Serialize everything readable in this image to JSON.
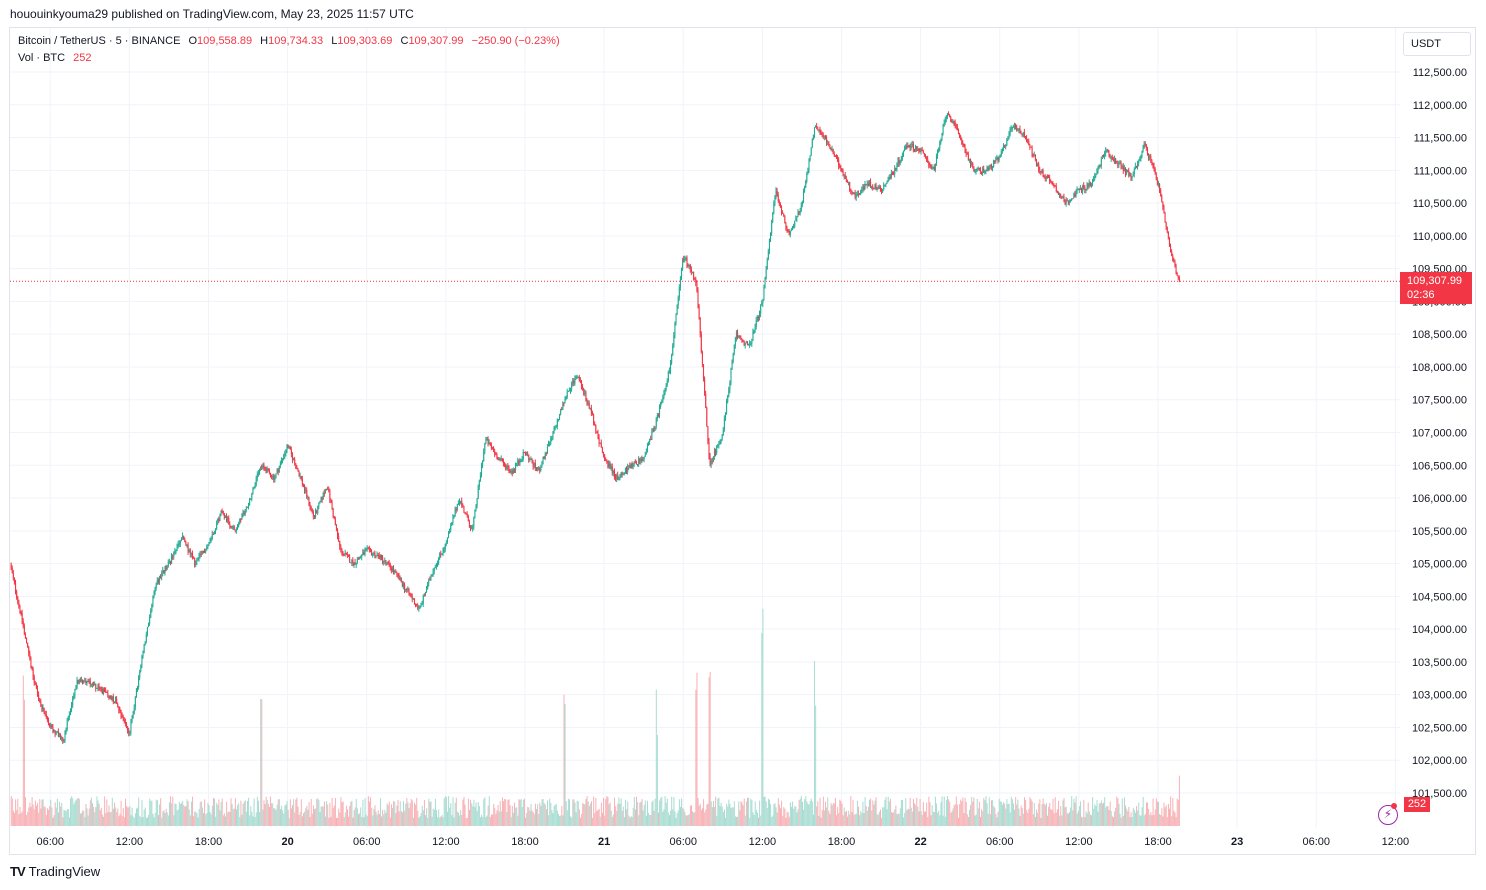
{
  "published_line": "hououinkyouma29 published on TradingView.com, May 23, 2025 11:57 UTC",
  "legend": {
    "symbol": "Bitcoin / TetherUS · 5 · BINANCE",
    "o_label": "O",
    "o_value": "109,558.89",
    "h_label": "H",
    "h_value": "109,734.33",
    "l_label": "L",
    "l_value": "109,303.69",
    "c_label": "C",
    "c_value": "109,307.99",
    "change": "−250.90 (−0.23%)",
    "vol_label": "Vol · BTC",
    "vol_value": "252"
  },
  "currency_button": "USDT",
  "last_price_tag": {
    "price": "109,307.99",
    "countdown": "02:36"
  },
  "volume_tag": "252",
  "brand": "TradingView",
  "colors": {
    "up": "#22ab94",
    "down": "#f23645",
    "up_volume": "#a8dcd2",
    "down_volume": "#f7b2b6",
    "grid": "#f0f3fa"
  },
  "chart_data": {
    "type": "candlestick",
    "title": "Bitcoin / TetherUS · 5 · BINANCE",
    "interval": "5 minutes",
    "y_axis": {
      "ticks": [
        101500,
        102000,
        102500,
        103000,
        103500,
        104000,
        104500,
        105000,
        105500,
        106000,
        106500,
        107000,
        107500,
        108000,
        108500,
        109000,
        109500,
        110000,
        110500,
        111000,
        111500,
        112000,
        112500
      ],
      "tick_labels": [
        "101,500.00",
        "102,000.00",
        "102,500.00",
        "103,000.00",
        "103,500.00",
        "104,000.00",
        "104,500.00",
        "105,000.00",
        "105,500.00",
        "106,000.00",
        "106,500.00",
        "107,000.00",
        "107,500.00",
        "108,000.00",
        "108,500.00",
        "109,000.00",
        "109,500.00",
        "110,000.00",
        "110,500.00",
        "111,000.00",
        "111,500.00",
        "112,000.00",
        "112,500.00"
      ],
      "range": [
        101100,
        112900
      ]
    },
    "x_axis": {
      "ticks": [
        {
          "label": "06:00",
          "hour": 6,
          "day": false
        },
        {
          "label": "12:00",
          "hour": 12,
          "day": false
        },
        {
          "label": "18:00",
          "hour": 18,
          "day": false
        },
        {
          "label": "20",
          "hour": 24,
          "day": true
        },
        {
          "label": "06:00",
          "hour": 30,
          "day": false
        },
        {
          "label": "12:00",
          "hour": 36,
          "day": false
        },
        {
          "label": "18:00",
          "hour": 42,
          "day": false
        },
        {
          "label": "21",
          "hour": 48,
          "day": true
        },
        {
          "label": "06:00",
          "hour": 54,
          "day": false
        },
        {
          "label": "12:00",
          "hour": 60,
          "day": false
        },
        {
          "label": "18:00",
          "hour": 66,
          "day": false
        },
        {
          "label": "22",
          "hour": 72,
          "day": true
        },
        {
          "label": "06:00",
          "hour": 78,
          "day": false
        },
        {
          "label": "12:00",
          "hour": 84,
          "day": false
        },
        {
          "label": "18:00",
          "hour": 90,
          "day": false
        },
        {
          "label": "23",
          "hour": 96,
          "day": true
        },
        {
          "label": "06:00",
          "hour": 102,
          "day": false
        },
        {
          "label": "12:00",
          "hour": 108,
          "day": false
        }
      ],
      "range_hours": [
        2.95,
        108.2
      ]
    },
    "price_path": [
      [
        2.95,
        105000
      ],
      [
        4,
        104000
      ],
      [
        5,
        103000
      ],
      [
        6,
        102500
      ],
      [
        7,
        102300
      ],
      [
        8,
        103200
      ],
      [
        9,
        103200
      ],
      [
        10,
        103050
      ],
      [
        11,
        102900
      ],
      [
        12,
        102400
      ],
      [
        13,
        103600
      ],
      [
        14,
        104700
      ],
      [
        15,
        105000
      ],
      [
        16,
        105400
      ],
      [
        17,
        105000
      ],
      [
        18,
        105300
      ],
      [
        19,
        105800
      ],
      [
        20,
        105500
      ],
      [
        21,
        105900
      ],
      [
        22,
        106500
      ],
      [
        23,
        106300
      ],
      [
        24,
        106800
      ],
      [
        25,
        106300
      ],
      [
        26,
        105700
      ],
      [
        27,
        106200
      ],
      [
        28,
        105200
      ],
      [
        29,
        105000
      ],
      [
        30,
        105200
      ],
      [
        31,
        105100
      ],
      [
        32,
        104900
      ],
      [
        33,
        104600
      ],
      [
        34,
        104300
      ],
      [
        35,
        104900
      ],
      [
        36,
        105300
      ],
      [
        37,
        106000
      ],
      [
        38,
        105500
      ],
      [
        39,
        106900
      ],
      [
        40,
        106600
      ],
      [
        41,
        106400
      ],
      [
        42,
        106700
      ],
      [
        43,
        106400
      ],
      [
        44,
        106900
      ],
      [
        45,
        107500
      ],
      [
        46,
        107900
      ],
      [
        47,
        107300
      ],
      [
        48,
        106600
      ],
      [
        49,
        106300
      ],
      [
        50,
        106500
      ],
      [
        51,
        106600
      ],
      [
        52,
        107200
      ],
      [
        53,
        108000
      ],
      [
        54,
        109700
      ],
      [
        55,
        109300
      ],
      [
        56,
        106500
      ],
      [
        57,
        107000
      ],
      [
        58,
        108500
      ],
      [
        59,
        108300
      ],
      [
        60,
        109000
      ],
      [
        61,
        110700
      ],
      [
        62,
        110000
      ],
      [
        63,
        110500
      ],
      [
        64,
        111700
      ],
      [
        65,
        111400
      ],
      [
        66,
        111000
      ],
      [
        67,
        110600
      ],
      [
        68,
        110800
      ],
      [
        69,
        110700
      ],
      [
        70,
        111000
      ],
      [
        71,
        111400
      ],
      [
        72,
        111300
      ],
      [
        73,
        111000
      ],
      [
        74,
        111900
      ],
      [
        75,
        111500
      ],
      [
        76,
        111000
      ],
      [
        77,
        111000
      ],
      [
        78,
        111200
      ],
      [
        79,
        111700
      ],
      [
        80,
        111500
      ],
      [
        81,
        111000
      ],
      [
        82,
        110800
      ],
      [
        83,
        110500
      ],
      [
        84,
        110700
      ],
      [
        85,
        110800
      ],
      [
        86,
        111300
      ],
      [
        87,
        111100
      ],
      [
        88,
        110900
      ],
      [
        89,
        111400
      ],
      [
        90,
        110800
      ],
      [
        91,
        109700
      ],
      [
        91.6,
        109308
      ]
    ],
    "last_close": 109307.99,
    "current_volume": 252,
    "volume_spikes_btc": [
      [
        4,
        900
      ],
      [
        22,
        650
      ],
      [
        45,
        720
      ],
      [
        52,
        720
      ],
      [
        55,
        800
      ],
      [
        56,
        1000
      ],
      [
        60,
        1200
      ],
      [
        64,
        850
      ]
    ]
  }
}
